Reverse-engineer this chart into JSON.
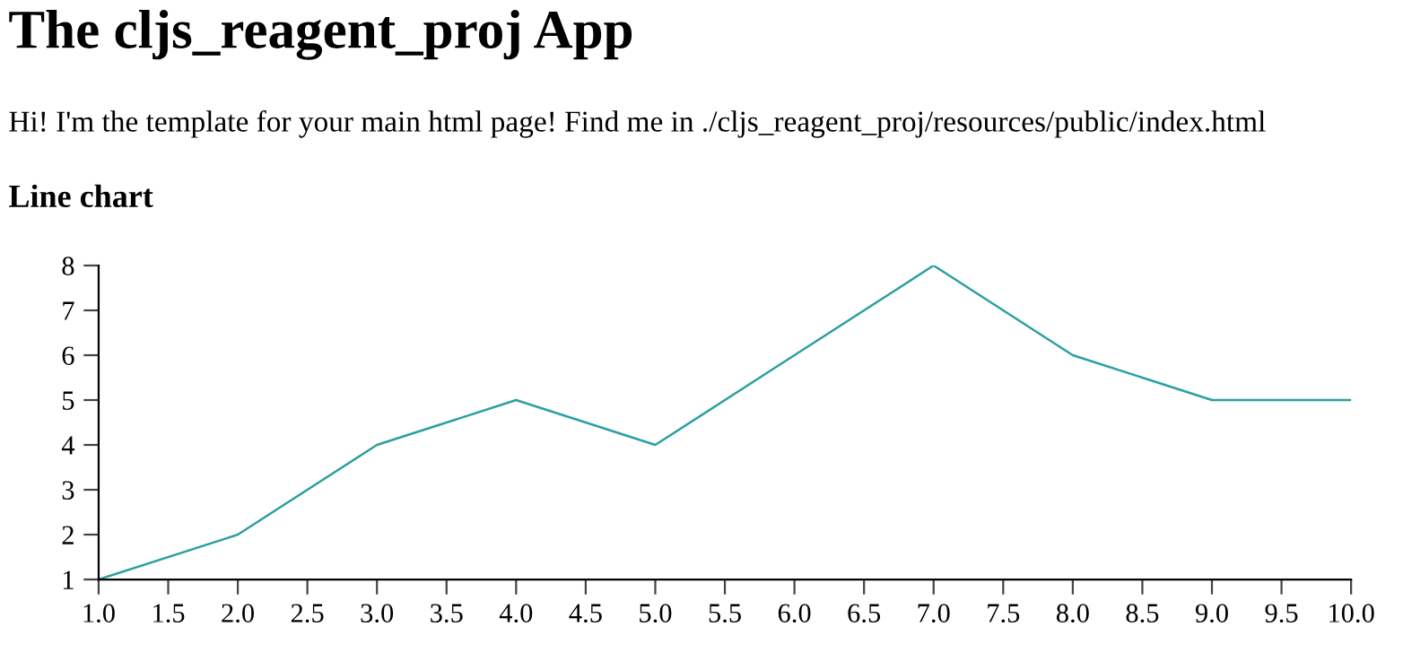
{
  "chart_data": {
    "type": "line",
    "title": "The cljs_reagent_proj App",
    "subtitle": "Hi! I'm the template for your main html page! Find me in ./cljs_reagent_proj/resources/public/index.html",
    "annotations": [
      "Line chart"
    ],
    "x": [
      1,
      2,
      3,
      4,
      5,
      6,
      7,
      8,
      9,
      10
    ],
    "series": [
      {
        "color": "#2ca0a0",
        "values": [
          1,
          2,
          4,
          5,
          4,
          6,
          8,
          6,
          5,
          5
        ]
      }
    ],
    "xlim": [
      1,
      10
    ],
    "ylim": [
      1,
      8
    ],
    "xticks": [
      {
        "value": 1,
        "label": "1.0"
      },
      {
        "value": 1.5,
        "label": "1.5"
      },
      {
        "value": 2,
        "label": "2.0"
      },
      {
        "value": 2.5,
        "label": "2.5"
      },
      {
        "value": 3,
        "label": "3.0"
      },
      {
        "value": 3.5,
        "label": "3.5"
      },
      {
        "value": 4,
        "label": "4.0"
      },
      {
        "value": 4.5,
        "label": "4.5"
      },
      {
        "value": 5,
        "label": "5.0"
      },
      {
        "value": 5.5,
        "label": "5.5"
      },
      {
        "value": 6,
        "label": "6.0"
      },
      {
        "value": 6.5,
        "label": "6.5"
      },
      {
        "value": 7,
        "label": "7.0"
      },
      {
        "value": 7.5,
        "label": "7.5"
      },
      {
        "value": 8,
        "label": "8.0"
      },
      {
        "value": 8.5,
        "label": "8.5"
      },
      {
        "value": 9,
        "label": "9.0"
      },
      {
        "value": 9.5,
        "label": "9.5"
      },
      {
        "value": 10,
        "label": "10.0"
      }
    ],
    "yticks": [
      1,
      2,
      3,
      4,
      5,
      6,
      7,
      8
    ]
  }
}
